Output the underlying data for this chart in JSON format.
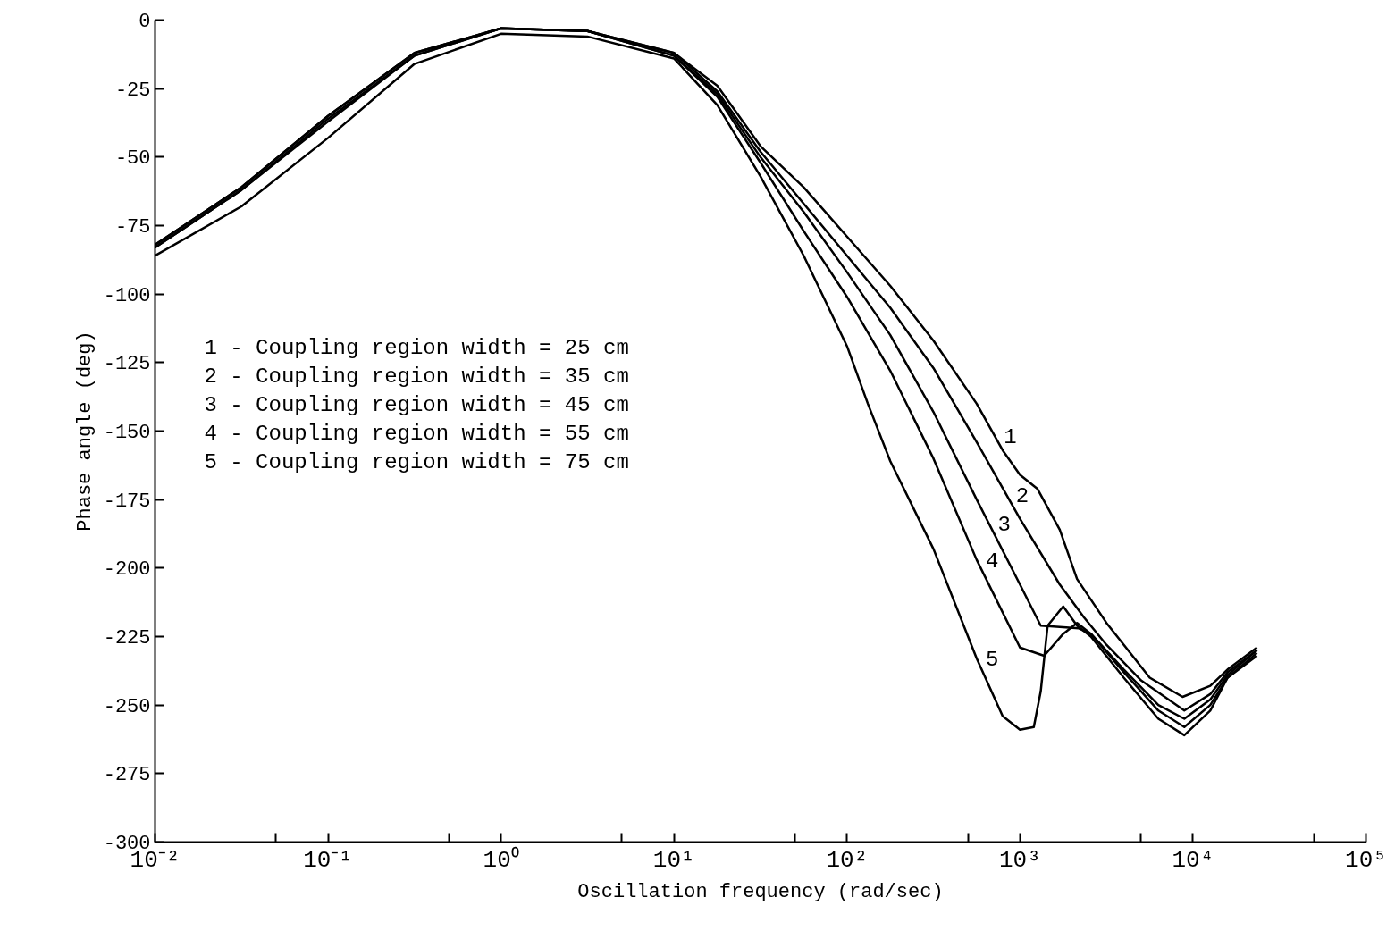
{
  "chart_data": {
    "type": "line",
    "xlabel": "Oscillation frequency (rad/sec)",
    "ylabel": "Phase angle (deg)",
    "log": "x",
    "grid": false,
    "legend": false,
    "marker": "none",
    "line_style": "solid",
    "xlim": [
      0.01,
      100000
    ],
    "ylim": [
      -300,
      0
    ],
    "xticks": [
      {
        "value": 0.01,
        "label": "10⁻²"
      },
      {
        "value": 0.05,
        "label": null
      },
      {
        "value": 0.1,
        "label": "10⁻¹"
      },
      {
        "value": 0.5,
        "label": null
      },
      {
        "value": 1,
        "label": "10⁰"
      },
      {
        "value": 5,
        "label": null
      },
      {
        "value": 10,
        "label": "10¹"
      },
      {
        "value": 50,
        "label": null
      },
      {
        "value": 100,
        "label": "10²"
      },
      {
        "value": 500,
        "label": null
      },
      {
        "value": 1000,
        "label": "10³"
      },
      {
        "value": 5000,
        "label": null
      },
      {
        "value": 10000,
        "label": "10⁴"
      },
      {
        "value": 50000,
        "label": null
      },
      {
        "value": 100000,
        "label": "10⁵"
      }
    ],
    "yticks": [
      0,
      -25,
      -50,
      -75,
      -100,
      -125,
      -150,
      -175,
      -200,
      -225,
      -250,
      -275,
      -300
    ],
    "series": [
      {
        "name": "1",
        "color": "#000000",
        "x": [
          0.01,
          0.0316,
          0.1,
          0.316,
          1,
          3.16,
          10,
          17.8,
          31.6,
          56.2,
          100,
          178,
          316,
          562,
          794,
          1000,
          1259,
          1698,
          2138,
          3162,
          5623,
          8710,
          12589,
          15849,
          23442
        ],
        "values": [
          -82,
          -61,
          -35,
          -12,
          -3,
          -4,
          -12,
          -24,
          -46,
          -61,
          -79,
          -97,
          -117,
          -140,
          -157,
          -166,
          -171,
          -186,
          -204,
          -220,
          -240,
          -247,
          -243,
          -237,
          -229
        ]
      },
      {
        "name": "2",
        "color": "#000000",
        "x": [
          0.01,
          0.0316,
          0.1,
          0.316,
          1,
          3.16,
          10,
          17.8,
          31.6,
          56.2,
          100,
          178,
          316,
          562,
          1000,
          1698,
          2344,
          3162,
          5012,
          8913,
          12589,
          15849,
          23442
        ],
        "values": [
          -82,
          -61,
          -35,
          -12,
          -3,
          -4,
          -12,
          -26,
          -48,
          -67,
          -86,
          -105,
          -127,
          -154,
          -182,
          -206,
          -218,
          -228,
          -241,
          -252,
          -246,
          -238,
          -230
        ]
      },
      {
        "name": "3",
        "color": "#000000",
        "x": [
          0.01,
          0.0316,
          0.1,
          0.316,
          1,
          3.16,
          10,
          17.8,
          31.6,
          56.2,
          100,
          178,
          316,
          562,
          1000,
          1318,
          2188,
          2570,
          3981,
          6310,
          8913,
          12589,
          15849,
          23442
        ],
        "values": [
          -83,
          -62,
          -36,
          -13,
          -3,
          -4,
          -13,
          -27,
          -50,
          -70,
          -92,
          -115,
          -143,
          -175,
          -206,
          -221,
          -222,
          -224,
          -237,
          -250,
          -255,
          -248,
          -239,
          -230
        ]
      },
      {
        "name": "4",
        "color": "#000000",
        "x": [
          0.01,
          0.0316,
          0.1,
          0.316,
          1,
          3.16,
          10,
          17.8,
          31.6,
          56.2,
          100,
          178,
          316,
          562,
          1000,
          1380,
          1778,
          2138,
          2570,
          3981,
          6310,
          8913,
          12589,
          15849,
          23442
        ],
        "values": [
          -83,
          -62,
          -37,
          -13,
          -3,
          -4,
          -13,
          -28,
          -52,
          -77,
          -101,
          -128,
          -160,
          -197,
          -229,
          -232,
          -224,
          -220,
          -224,
          -238,
          -252,
          -258,
          -250,
          -240,
          -231
        ]
      },
      {
        "name": "5",
        "color": "#000000",
        "x": [
          0.01,
          0.0316,
          0.1,
          0.316,
          1,
          3.16,
          10,
          17.8,
          31.6,
          56.2,
          100,
          132,
          178,
          316,
          562,
          794,
          1000,
          1202,
          1318,
          1445,
          1778,
          2138,
          2570,
          3981,
          6310,
          8913,
          12589,
          15849,
          23442
        ],
        "values": [
          -86,
          -68,
          -43,
          -16,
          -5,
          -6,
          -14,
          -31,
          -57,
          -86,
          -119,
          -140,
          -161,
          -193,
          -233,
          -254,
          -259,
          -258,
          -245,
          -221,
          -214,
          -221,
          -225,
          -240,
          -255,
          -261,
          -252,
          -240,
          -232
        ]
      }
    ],
    "annotations": [
      "1 - Coupling region width = 25 cm",
      "2 - Coupling region width = 35 cm",
      "3 - Coupling region width = 45 cm",
      "4 - Coupling region width = 55 cm",
      "5 - Coupling region width = 75 cm"
    ]
  }
}
